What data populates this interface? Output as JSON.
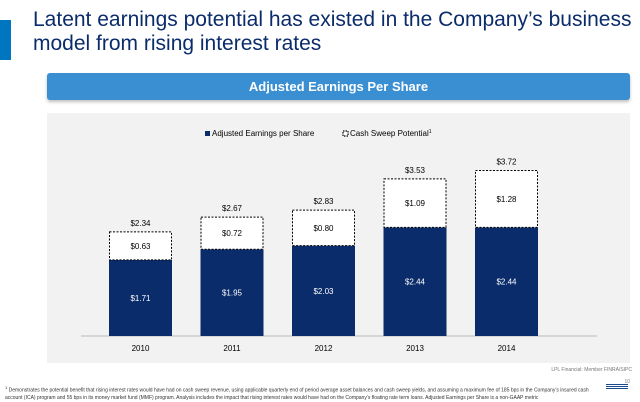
{
  "colors": {
    "accent": "#0076c0",
    "navy": "#0b2c6b",
    "banner": "#3a8fd3",
    "title": "#0b2c6b",
    "dashed_fill": "#ffffff"
  },
  "slide": {
    "title": "Latent earnings potential has existed in the Company’s business model from rising interest rates",
    "banner": "Adjusted Earnings Per Share"
  },
  "footer": {
    "firm": "LPL Financial: Member FINRA/SIPC",
    "page": "10",
    "footnote_marker": "1",
    "footnote": "Demonstrates the potential benefit that rising interest rates would have had on cash sweep revenue, using applicable quarterly end of period average asset balances and cash sweep yields, and assuming a maximum fee of 185 bps in the Company’s insured cash account (ICA) program and 55 bps in its money market fund (MMF) program. Analysis includes the impact that rising interest rates would have had on the Company’s floating rate term loans. Adjusted Earnings per Share is a non-GAAP metric"
  },
  "chart_data": {
    "type": "bar",
    "stacked": true,
    "categories": [
      "2010",
      "2011",
      "2012",
      "2013",
      "2014"
    ],
    "series": [
      {
        "name": "Adjusted Earnings per Share",
        "values": [
          1.71,
          1.95,
          2.03,
          2.44,
          2.44
        ],
        "labels": [
          "$1.71",
          "$1.95",
          "$2.03",
          "$2.44",
          "$2.44"
        ],
        "style": "solid"
      },
      {
        "name": "Cash Sweep Potential",
        "values": [
          0.63,
          0.72,
          0.8,
          1.09,
          1.28
        ],
        "labels": [
          "$0.63",
          "$0.72",
          "$0.80",
          "$1.09",
          "$1.28"
        ],
        "style": "dashed"
      }
    ],
    "totals": [
      "$2.34",
      "$2.67",
      "$2.83",
      "$3.53",
      "$3.72"
    ],
    "legend_superscript": "1",
    "legend_position": "top-center",
    "ylim": [
      0,
      4.0
    ],
    "y_axis_visible": false,
    "grid": false
  }
}
